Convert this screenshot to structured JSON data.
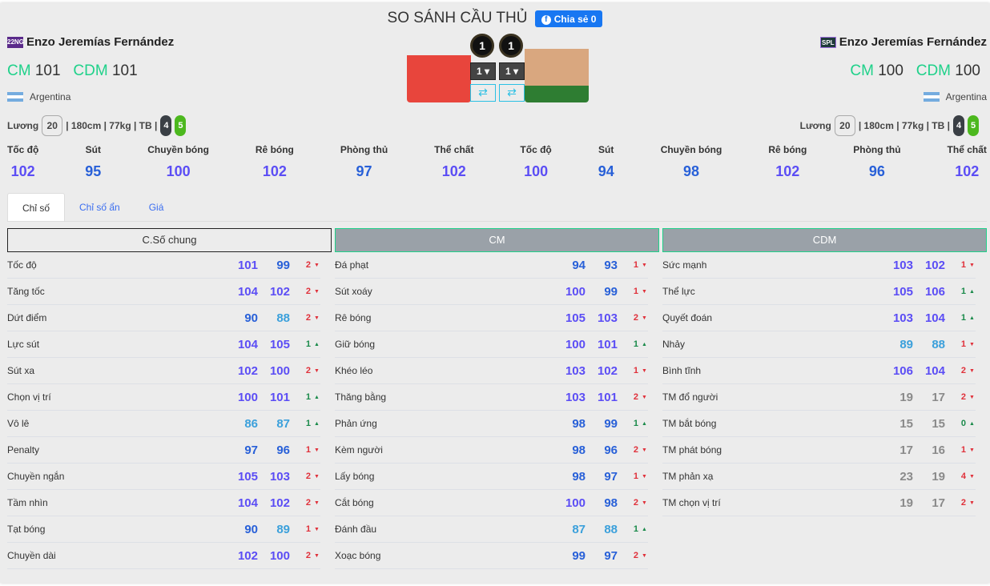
{
  "title": "SO SÁNH CẦU THỦ",
  "share": {
    "icon": "facebook-icon",
    "label": "Chia sẻ 0"
  },
  "colors": {
    "accent": "#1fd18a",
    "s100": "#5b4df5",
    "s90": "#2860d8",
    "s80": "#3ba0db",
    "low": "#8a8a8a",
    "up": "#1a8a4a",
    "down": "#e0303a"
  },
  "left": {
    "season": "22NG",
    "name": "Enzo Jeremías Fernández",
    "positions": [
      {
        "pos": "CM",
        "val": "101"
      },
      {
        "pos": "CDM",
        "val": "101"
      }
    ],
    "nation": "Argentina",
    "salary_label": "Lương",
    "salary": "20",
    "info": "| 180cm | 77kg | TB |",
    "foot_weak": "4",
    "foot_strong": "5",
    "level": "1",
    "upgrade": "1",
    "stats": [
      {
        "l": "Tốc độ",
        "v": 102
      },
      {
        "l": "Sút",
        "v": 95
      },
      {
        "l": "Chuyền bóng",
        "v": 100
      },
      {
        "l": "Rê bóng",
        "v": 102
      },
      {
        "l": "Phòng thủ",
        "v": 97
      },
      {
        "l": "Thể chất",
        "v": 102
      }
    ]
  },
  "right": {
    "season": "SPL",
    "name": "Enzo Jeremías Fernández",
    "positions": [
      {
        "pos": "CM",
        "val": "100"
      },
      {
        "pos": "CDM",
        "val": "100"
      }
    ],
    "nation": "Argentina",
    "salary_label": "Lương",
    "salary": "20",
    "info": "| 180cm | 77kg | TB |",
    "foot_weak": "4",
    "foot_strong": "5",
    "level": "1",
    "upgrade": "1",
    "stats": [
      {
        "l": "Tốc độ",
        "v": 100
      },
      {
        "l": "Sút",
        "v": 94
      },
      {
        "l": "Chuyền bóng",
        "v": 98
      },
      {
        "l": "Rê bóng",
        "v": 102
      },
      {
        "l": "Phòng thủ",
        "v": 96
      },
      {
        "l": "Thể chất",
        "v": 102
      }
    ]
  },
  "tabs": [
    {
      "label": "Chỉ số",
      "active": true
    },
    {
      "label": "Chỉ số ẩn"
    },
    {
      "label": "Giá"
    }
  ],
  "columns": [
    {
      "header": "C.Số chung",
      "rows": [
        [
          "Tốc độ",
          101,
          99,
          2,
          "down"
        ],
        [
          "Tăng tốc",
          104,
          102,
          2,
          "down"
        ],
        [
          "Dứt điểm",
          90,
          88,
          2,
          "down"
        ],
        [
          "Lực sút",
          104,
          105,
          1,
          "up"
        ],
        [
          "Sút xa",
          102,
          100,
          2,
          "down"
        ],
        [
          "Chọn vị trí",
          100,
          101,
          1,
          "up"
        ],
        [
          "Vô lê",
          86,
          87,
          1,
          "up"
        ],
        [
          "Penalty",
          97,
          96,
          1,
          "down"
        ],
        [
          "Chuyền ngắn",
          105,
          103,
          2,
          "down"
        ],
        [
          "Tầm nhìn",
          104,
          102,
          2,
          "down"
        ],
        [
          "Tạt bóng",
          90,
          89,
          1,
          "down"
        ],
        [
          "Chuyền dài",
          102,
          100,
          2,
          "down"
        ]
      ]
    },
    {
      "header": "CM",
      "rows": [
        [
          "Đá phạt",
          94,
          93,
          1,
          "down"
        ],
        [
          "Sút xoáy",
          100,
          99,
          1,
          "down"
        ],
        [
          "Rê bóng",
          105,
          103,
          2,
          "down"
        ],
        [
          "Giữ bóng",
          100,
          101,
          1,
          "up"
        ],
        [
          "Khéo léo",
          103,
          102,
          1,
          "down"
        ],
        [
          "Thăng bằng",
          103,
          101,
          2,
          "down"
        ],
        [
          "Phản ứng",
          98,
          99,
          1,
          "up"
        ],
        [
          "Kèm người",
          98,
          96,
          2,
          "down"
        ],
        [
          "Lấy bóng",
          98,
          97,
          1,
          "down"
        ],
        [
          "Cắt bóng",
          100,
          98,
          2,
          "down"
        ],
        [
          "Đánh đầu",
          87,
          88,
          1,
          "up"
        ],
        [
          "Xoạc bóng",
          99,
          97,
          2,
          "down"
        ]
      ]
    },
    {
      "header": "CDM",
      "rows": [
        [
          "Sức mạnh",
          103,
          102,
          1,
          "down"
        ],
        [
          "Thể lực",
          105,
          106,
          1,
          "up"
        ],
        [
          "Quyết đoán",
          103,
          104,
          1,
          "up"
        ],
        [
          "Nhảy",
          89,
          88,
          1,
          "down"
        ],
        [
          "Bình tĩnh",
          106,
          104,
          2,
          "down"
        ],
        [
          "TM đổ người",
          19,
          17,
          2,
          "down"
        ],
        [
          "TM bắt bóng",
          15,
          15,
          0,
          "up"
        ],
        [
          "TM phát bóng",
          17,
          16,
          1,
          "down"
        ],
        [
          "TM phản xạ",
          23,
          19,
          4,
          "down"
        ],
        [
          "TM chọn vị trí",
          19,
          17,
          2,
          "down"
        ]
      ]
    }
  ]
}
